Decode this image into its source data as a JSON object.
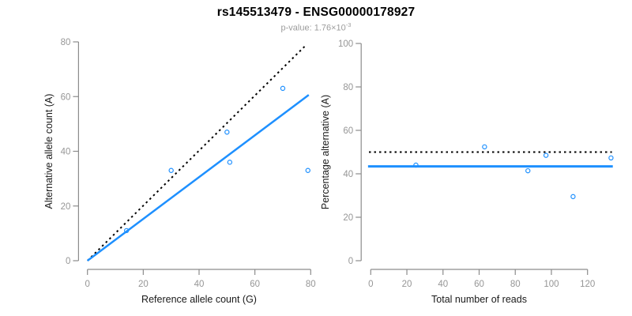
{
  "header": {
    "title": "rs145513479 - ENSG00000178927",
    "p_prefix": "p-value: 1.76×10",
    "p_exponent": "-3"
  },
  "colors": {
    "accent_blue": "#1E90FF",
    "reference_black": "#000000",
    "axis_gray": "#8c8c8c",
    "tick_label_gray": "#969696",
    "axis_title_black": "#1a1a1a",
    "subtitle_gray": "#9c9c9c",
    "background": "#ffffff"
  },
  "chart_data": [
    {
      "type": "scatter",
      "name": "allele-counts",
      "xlabel": "Reference allele count (G)",
      "ylabel": "Alternative allele count (A)",
      "xlim": [
        0,
        80
      ],
      "ylim": [
        0,
        80
      ],
      "xticks": [
        0,
        20,
        40,
        60,
        80
      ],
      "yticks": [
        0,
        20,
        40,
        60,
        80
      ],
      "grid": false,
      "marker": "open-circle",
      "points": [
        [
          14,
          11
        ],
        [
          30,
          33
        ],
        [
          50,
          47
        ],
        [
          51,
          36
        ],
        [
          70,
          63
        ],
        [
          79,
          33
        ]
      ],
      "lines": [
        {
          "label": "expected-50-50",
          "style": "dotted",
          "color": "#000000",
          "width": 2,
          "points": [
            [
              0,
              0
            ],
            [
              78.5,
              79
            ]
          ]
        },
        {
          "label": "fitted-ratio",
          "style": "solid",
          "color": "#1E90FF",
          "width": 2.5,
          "points": [
            [
              0,
              0
            ],
            [
              79.3,
              60.6
            ]
          ]
        }
      ]
    },
    {
      "type": "scatter",
      "name": "percentage-alternative",
      "xlabel": "Total number of reads",
      "ylabel": "Percentage alternative (A)",
      "xlim": [
        0,
        135
      ],
      "ylim": [
        0,
        100
      ],
      "xticks": [
        0,
        20,
        40,
        60,
        80,
        100,
        120
      ],
      "yticks": [
        0,
        20,
        40,
        60,
        80,
        100
      ],
      "grid": false,
      "marker": "open-circle",
      "points": [
        [
          25,
          44
        ],
        [
          63,
          52.4
        ],
        [
          87,
          41.4
        ],
        [
          97,
          48.5
        ],
        [
          112,
          29.5
        ],
        [
          133,
          47.3
        ]
      ],
      "lines": [
        {
          "label": "expected-50-percent",
          "style": "dotted",
          "color": "#000000",
          "width": 2,
          "points": [
            [
              -1,
              50
            ],
            [
              133.5,
              50
            ]
          ]
        },
        {
          "label": "fitted-percentage",
          "style": "solid",
          "color": "#1E90FF",
          "width": 3,
          "points": [
            [
              -1.5,
              43.4
            ],
            [
              134,
              43.4
            ]
          ]
        }
      ]
    }
  ]
}
